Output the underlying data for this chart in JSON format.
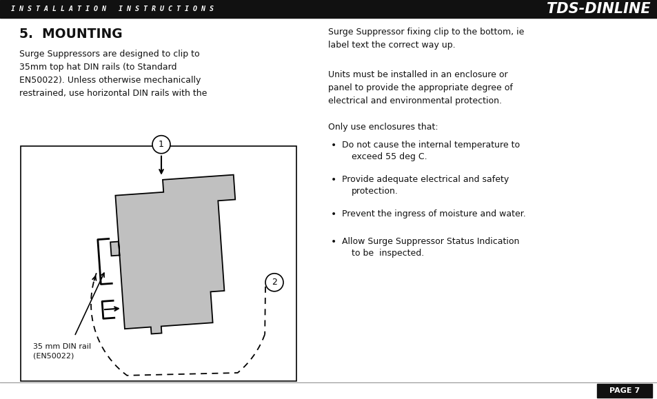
{
  "bg_color": "#ffffff",
  "header_bg": "#111111",
  "header_text": "I N S T A L L A T I O N   I N S T R U C T I O N S",
  "header_brand": "TDS-DINLINE",
  "header_text_color": "#ffffff",
  "title": "5.  MOUNTING",
  "left_para1": "Surge Suppressors are designed to clip to\n35mm top hat DIN rails (to Standard\nEN50022). Unless otherwise mechanically\nrestrained, use horizontal DIN rails with the",
  "right_para1": "Surge Suppressor fixing clip to the bottom, ie\nlabel text the correct way up.",
  "right_para2": "Units must be installed in an enclosure or\npanel to provide the appropriate degree of\nelectrical and environmental protection.",
  "right_para3": "Only use enclosures that:",
  "bullet1_line1": "Do not cause the internal temperature to",
  "bullet1_line2": "exceed 55 deg C.",
  "bullet2_line1": "Provide adequate electrical and safety",
  "bullet2_line2": "protection.",
  "bullet3_line1": "Prevent the ingress of moisture and water.",
  "bullet4_line1": "Allow Surge Suppressor Status Indication",
  "bullet4_line2": "to be  inspected.",
  "din_label": "35 mm DIN rail\n(EN50022)",
  "page_label": "PAGE 7",
  "diagram_border": "#000000",
  "device_fill": "#c0c0c0",
  "device_stroke": "#000000",
  "text_color": "#111111",
  "footer_bg": "#111111",
  "footer_text_color": "#ffffff",
  "separator_color": "#888888"
}
